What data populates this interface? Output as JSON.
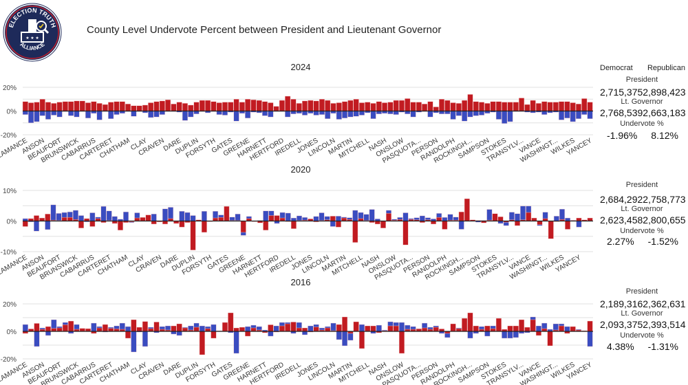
{
  "logo": {
    "text_top": "ELECTION TRUTH",
    "text_bottom": "ALLIANCE"
  },
  "title": "County Level Undervote Percent between President and Lieutenant Governor",
  "legend": {
    "democrat": "Democrat",
    "republican": "Republican"
  },
  "colors": {
    "democrat": "#3a4cc0",
    "republican": "#c11b21"
  },
  "chart_data": [
    {
      "type": "bar",
      "title": "2024",
      "ylim": [
        -20,
        20
      ],
      "yticks": [
        "20%",
        "0%",
        "-20%"
      ],
      "ytick_values": [
        20,
        0,
        -20
      ],
      "tick_labels": [
        "ALAMANCE",
        "ANSON",
        "BEAUFORT",
        "BRUNSWICK",
        "CABARRUS",
        "CARTERET",
        "CHATHAM",
        "CLAY",
        "CRAVEN",
        "DARE",
        "DUPLIN",
        "FORSYTH",
        "GATES",
        "GREENE",
        "HARNETT",
        "HERTFORD",
        "IREDELL",
        "JONES",
        "LINCOLN",
        "MARTIN",
        "MITCHELL",
        "NASH",
        "ONSLOW",
        "PASQUOTA...",
        "PERSON",
        "RANDOLPH",
        "ROCKINGH...",
        "SAMPSON",
        "STOKES",
        "TRANSYLV...",
        "VANCE",
        "WASHINGT...",
        "WILKES",
        "YANCEY"
      ],
      "series": [
        {
          "name": "Republican",
          "values": [
            8,
            7,
            7.5,
            10,
            7.5,
            6.5,
            7.5,
            8,
            8,
            8.5,
            8.5,
            7,
            8,
            6.5,
            5.5,
            7.5,
            8,
            8,
            6,
            4.5,
            4.5,
            5,
            7,
            8,
            8.5,
            9.5,
            6,
            7.5,
            6.5,
            5,
            7.5,
            9,
            9,
            8,
            7,
            7.5,
            7.5,
            10,
            7.5,
            10,
            9.5,
            9,
            8,
            7,
            4,
            9,
            12.5,
            10,
            6.5,
            8.5,
            9,
            8.5,
            10,
            9,
            6.5,
            7,
            8,
            9,
            10,
            7,
            7.5,
            6.5,
            8,
            7,
            7.5,
            9,
            9,
            10.5,
            7.5,
            7.5,
            6,
            8,
            3.5,
            10,
            9,
            7,
            6.5,
            9,
            14,
            8,
            7.5,
            6.5,
            8,
            8,
            7.5,
            7.5,
            7.5,
            11,
            5.5,
            9,
            6.5,
            8,
            7.5,
            7.5,
            8,
            8,
            7,
            6,
            10.5,
            7.5
          ]
        },
        {
          "name": "Democrat",
          "values": [
            -3,
            -10,
            -9,
            -4,
            -7,
            -3.5,
            -5,
            -0.5,
            -4,
            -5,
            -0.5,
            -6,
            -2,
            -7.5,
            -0.5,
            -6.5,
            -3,
            -2,
            -0.5,
            -4.5,
            -0.5,
            -1.5,
            -5.5,
            -5,
            -3,
            -0.5,
            -0.5,
            -1,
            -8,
            -5,
            -2.5,
            -0.5,
            -1.5,
            -0.5,
            -3,
            -3.5,
            -1,
            -8.5,
            -2,
            -6,
            -1,
            -1.5,
            -4,
            -5,
            -0.5,
            -0.5,
            -5,
            -2.5,
            -2,
            -3.5,
            -2,
            -3.5,
            -3,
            -6.5,
            -2,
            -7,
            -6,
            -5,
            -4.5,
            -3.5,
            -1.5,
            -6.5,
            -2.5,
            -2,
            -2.5,
            -3,
            -1,
            -2.5,
            -5,
            -1,
            -0.5,
            -5,
            -1.5,
            -2.5,
            -2.5,
            -7,
            -4,
            -8.5,
            -5,
            -4,
            -3.5,
            -2,
            -1,
            -7,
            -10.5,
            -9,
            -0.5,
            -0.5,
            -1,
            -1.5,
            -1,
            -3,
            -1.5,
            -1,
            -7.5,
            -6,
            -9,
            -6.5,
            -3,
            -6.5
          ]
        }
      ],
      "summary": {
        "president_label": "President",
        "president": [
          "2,715,375",
          "2,898,423"
        ],
        "ltgov_label": "Lt. Governor",
        "ltgov": [
          "2,768,539",
          "2,663,183"
        ],
        "undervote_label": "Undervote %",
        "undervote": [
          "-1.96%",
          "8.12%"
        ]
      }
    },
    {
      "type": "bar",
      "title": "2020",
      "ylim": [
        -10,
        10
      ],
      "yticks": [
        "10%",
        "0%",
        "-10%"
      ],
      "ytick_values": [
        10,
        0,
        -10
      ],
      "tick_labels": [
        "ALAMANCE",
        "ANSON",
        "BEAUFORT",
        "BRUNSWICK",
        "CABARRUS",
        "CARTERET",
        "CHATHAM",
        "CLAY",
        "CRAVEN",
        "DARE",
        "DUPLIN",
        "FORSYTH",
        "GATES",
        "GREENE",
        "HARNETT",
        "HERTFORD",
        "IREDELL",
        "JONES",
        "LINCOLN",
        "MARTIN",
        "MITCHELL",
        "NASH",
        "ONSLOW",
        "PASQUOTA...",
        "PERSON",
        "RANDOLPH",
        "ROCKINGH...",
        "SAMPSON",
        "STOKES",
        "TRANSYLV...",
        "VANCE",
        "WASHINGT...",
        "WILKES",
        "YANCEY"
      ],
      "series": [
        {
          "name": "Republican",
          "values": [
            -1.8,
            0.8,
            1.8,
            1,
            2.3,
            0.3,
            0.2,
            1.2,
            1.2,
            0.5,
            -2.3,
            0.8,
            -1.8,
            0.8,
            -0.5,
            0.2,
            -0.8,
            -3,
            -0.5,
            -0.3,
            1,
            1.2,
            2,
            -1,
            -0.3,
            -1,
            0.8,
            -0.8,
            -2,
            -0.5,
            -9.5,
            0.4,
            -3.7,
            -0.2,
            1,
            1.2,
            4.8,
            0.2,
            0.2,
            -3.7,
            0.8,
            -0.2,
            -0.6,
            -3,
            1.8,
            1.8,
            1,
            -0.2,
            -2.5,
            0.2,
            0.3,
            0.7,
            -0.3,
            0.2,
            0.4,
            1.6,
            -2,
            1,
            0.5,
            -7,
            0.8,
            0.2,
            -0.5,
            -1,
            -2.3,
            2.5,
            0.3,
            0.5,
            -7.8,
            0.5,
            0.4,
            -0.5,
            0.4,
            -1,
            1.2,
            -2.7,
            0.3,
            0.3,
            3,
            7.3,
            0.4,
            0.2,
            -0.6,
            0.3,
            2.4,
            1.4,
            -0.4,
            0.4,
            -1.5,
            0.4,
            2.8,
            1,
            -1.2,
            0.8,
            -5.8,
            -0.2,
            0.5,
            -2.7,
            0.2,
            1,
            0.4,
            1
          ]
        },
        {
          "name": "Democrat",
          "values": [
            0.8,
            -0.3,
            -3.3,
            0.2,
            -2.8,
            5.3,
            2.5,
            2.8,
            3,
            3.5,
            1.8,
            -0.3,
            2.7,
            1.3,
            4.8,
            3.3,
            1.5,
            0.6,
            3,
            -0.5,
            2.7,
            0.2,
            0.2,
            2.3,
            -0.3,
            4,
            4.5,
            -0.4,
            3.2,
            2.8,
            1.8,
            0.2,
            3.2,
            -0.2,
            3.2,
            2,
            0.3,
            1.3,
            2.3,
            -4.7,
            1.5,
            -0.2,
            0.2,
            3.3,
            3.3,
            -0.8,
            2.8,
            2.6,
            1,
            1.7,
            1.2,
            0.5,
            1.5,
            2.7,
            1.5,
            -1.8,
            1.6,
            1.3,
            1.1,
            3.5,
            2.8,
            2.2,
            3.8,
            0.7,
            -0.5,
            3.5,
            0.6,
            1.2,
            2.7,
            0.8,
            1.1,
            1.7,
            1.1,
            0.7,
            2.5,
            1.2,
            2.2,
            1.3,
            -2.7,
            0.8,
            0.3,
            -0.4,
            0.2,
            3.8,
            2.2,
            -0.8,
            -1.5,
            2.9,
            2.4,
            4.9,
            4.9,
            0.6,
            -1.5,
            2.9,
            -1.8,
            1.6,
            3.9,
            1,
            0.3,
            -2
          ]
        }
      ],
      "summary": {
        "president_label": "President",
        "president": [
          "2,684,292",
          "2,758,773"
        ],
        "ltgov_label": "Lt. Governor",
        "ltgov": [
          "2,623,458",
          "2,800,655"
        ],
        "undervote_label": "Undervote %",
        "undervote": [
          "2.27%",
          "-1.52%"
        ]
      }
    },
    {
      "type": "bar",
      "title": "2016",
      "ylim": [
        -20,
        20
      ],
      "yticks": [
        "20%",
        "0%",
        "-20%"
      ],
      "ytick_values": [
        20,
        0,
        -20
      ],
      "tick_labels": [
        "ALAMANCE",
        "ANSON",
        "BEAUFORT",
        "BRUNSWICK",
        "CABARRUS",
        "CARTERET",
        "CHATHAM",
        "CLAY",
        "CRAVEN",
        "DARE",
        "DUPLIN",
        "FORSYTH",
        "GATES",
        "GREENE",
        "HARNETT",
        "HERTFORD",
        "IREDELL",
        "JONES",
        "LINCOLN",
        "MARTIN",
        "MITCHELL",
        "NASH",
        "ONSLOW",
        "PASQUOTA...",
        "PERSON",
        "RANDOLPH",
        "ROCKINGH...",
        "SAMPSON",
        "STOKES",
        "TRANSYLV...",
        "VANCE",
        "WASHINGT...",
        "WILKES",
        "YANCEY"
      ],
      "series": [
        {
          "name": "Republican",
          "values": [
            -1.5,
            1.8,
            5.8,
            1.5,
            3.5,
            2.2,
            2.5,
            4.8,
            7.5,
            1.5,
            2.2,
            2,
            -1.5,
            2.5,
            5,
            2.2,
            1.8,
            1.5,
            -5,
            8.5,
            3,
            7.2,
            2,
            6.8,
            1.5,
            1,
            4,
            5.5,
            2.5,
            1,
            3,
            -17,
            2,
            -5,
            0.3,
            6.5,
            13.5,
            2.5,
            3,
            -3.5,
            2.5,
            1,
            -1,
            4.8,
            -0.5,
            4,
            5.5,
            6.8,
            2.5,
            2.5,
            -0.5,
            3.2,
            1,
            2.5,
            0.5,
            5,
            10.5,
            -1.5,
            7,
            -12.5,
            4,
            4,
            -1,
            0.5,
            4,
            4,
            -16,
            1.5,
            1.5,
            1.8,
            2.5,
            1.5,
            3,
            1.8,
            -1.5,
            5.5,
            2,
            9.5,
            13.5,
            4,
            1.5,
            4,
            2,
            9.5,
            1.5,
            4,
            4,
            8.5,
            3,
            8.5,
            -3,
            2,
            -10.5,
            1,
            4,
            -1.5,
            3.5,
            1,
            0.5,
            7.5
          ]
        },
        {
          "name": "Democrat",
          "values": [
            5,
            0.5,
            -11,
            2.5,
            -3,
            8.5,
            3.5,
            6.5,
            -1.5,
            5,
            2,
            0.5,
            6,
            3.5,
            -0.5,
            3,
            4,
            6,
            3.5,
            -15,
            -0.5,
            -11,
            3,
            -1,
            3.5,
            4,
            -2,
            -3,
            3,
            4,
            6,
            4,
            3.5,
            5,
            0.5,
            5.5,
            -1,
            -16,
            2.5,
            3.5,
            4.5,
            3.5,
            1,
            -3.5,
            4,
            6.5,
            6.5,
            -1.5,
            6.5,
            -2.5,
            4,
            5,
            2.5,
            3.5,
            6,
            -6,
            -10.5,
            -6.5,
            6.5,
            5,
            3.5,
            -1.5,
            4.5,
            1,
            7,
            6.5,
            6.5,
            4.5,
            3.5,
            2,
            6,
            3,
            4,
            -1.5,
            -4.5,
            4,
            2.5,
            5,
            -5,
            -1.5,
            3.5,
            -3.5,
            4,
            4.5,
            -5,
            -5,
            -4.5,
            -1.5,
            -1,
            10.5,
            4,
            6,
            1.5,
            5.5,
            5.5,
            3.5,
            1.5,
            1.5,
            0.5,
            -11
          ]
        }
      ],
      "summary": {
        "president_label": "President",
        "president": [
          "2,189,316",
          "2,362,631"
        ],
        "ltgov_label": "Lt. Governor",
        "ltgov": [
          "2,093,375",
          "2,393,514"
        ],
        "undervote_label": "Undervote %",
        "undervote": [
          "4.38%",
          "-1.31%"
        ]
      }
    }
  ]
}
